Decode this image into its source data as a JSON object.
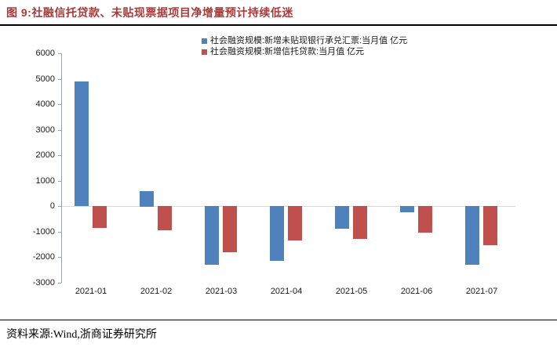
{
  "header": {
    "title": "图 9:社融信托贷款、未贴现票据项目净增量预计持续低迷",
    "accent_color": "#a93a38"
  },
  "chart_data": {
    "type": "bar",
    "categories": [
      "2021-01",
      "2021-02",
      "2021-03",
      "2021-04",
      "2021-05",
      "2021-06",
      "2021-07"
    ],
    "series": [
      {
        "name": "社会融资规模:新增未贴现银行承兑汇票:当月值 亿元",
        "color": "#4f81bd",
        "values": [
          4900,
          600,
          -2300,
          -2150,
          -900,
          -250,
          -2300
        ]
      },
      {
        "name": "社会融资规模:新增信托贷款:当月值 亿元",
        "color": "#c0504d",
        "values": [
          -850,
          -950,
          -1800,
          -1350,
          -1300,
          -1050,
          -1550
        ]
      }
    ],
    "ylim": [
      -3000,
      6000
    ],
    "yticks": [
      6000,
      5000,
      4000,
      3000,
      2000,
      1000,
      0,
      -1000,
      -2000,
      -3000
    ],
    "grid": "zero-line-only",
    "legend_position": "top",
    "title": "",
    "xlabel": "",
    "ylabel": ""
  },
  "footer": {
    "source_text": "资料来源:Wind,浙商证券研究所"
  }
}
